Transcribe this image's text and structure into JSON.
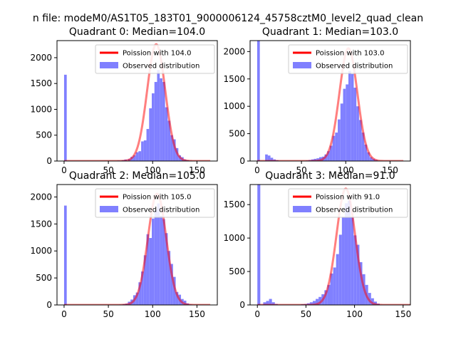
{
  "suptitle": "n file: modeM0/AS1T05_183T01_9000006124_45758cztM0_level2_quad_clean",
  "colors": {
    "hist": "#8080ff",
    "poisson": "#ff0000",
    "frame": "#000000"
  },
  "chart_data": [
    {
      "type": "bar",
      "title": "Quadrant 0: Median=104.0",
      "legend": {
        "placement": "top-right",
        "entries": [
          "Poission with 104.0",
          "Observed distribution"
        ]
      },
      "xlim": [
        -8,
        173
      ],
      "ylim": [
        0,
        2330
      ],
      "xticks": [
        0,
        50,
        100,
        150
      ],
      "yticks": [
        0,
        500,
        1000,
        1500,
        2000
      ],
      "poisson_mean": 104,
      "poisson_peak": 2260,
      "poisson_sigma": 10.2,
      "series": [
        {
          "name": "Observed distribution",
          "bins": [
            [
              0,
              1670
            ],
            [
              60,
              10
            ],
            [
              65,
              15
            ],
            [
              68,
              30
            ],
            [
              72,
              40
            ],
            [
              75,
              80
            ],
            [
              78,
              110
            ],
            [
              81,
              170
            ],
            [
              84,
              190
            ],
            [
              87,
              380
            ],
            [
              90,
              400
            ],
            [
              93,
              620
            ],
            [
              96,
              1020
            ],
            [
              99,
              1310
            ],
            [
              102,
              1530
            ],
            [
              105,
              1760
            ],
            [
              108,
              1600
            ],
            [
              111,
              1530
            ],
            [
              114,
              1040
            ],
            [
              117,
              780
            ],
            [
              120,
              500
            ],
            [
              123,
              420
            ],
            [
              126,
              250
            ],
            [
              129,
              110
            ],
            [
              132,
              75
            ],
            [
              135,
              30
            ],
            [
              138,
              15
            ],
            [
              141,
              8
            ]
          ],
          "bin_width": 3
        }
      ]
    },
    {
      "type": "bar",
      "title": "Quadrant 1: Median=103.0",
      "legend": {
        "placement": "top-right",
        "entries": [
          "Poission with 103.0",
          "Observed distribution"
        ]
      },
      "xlim": [
        -8,
        173
      ],
      "ylim": [
        0,
        2200
      ],
      "xticks": [
        0,
        50,
        100,
        150
      ],
      "yticks": [
        0,
        500,
        1000,
        1500,
        2000
      ],
      "poisson_mean": 103,
      "poisson_peak": 2060,
      "poisson_sigma": 10.1,
      "series": [
        {
          "name": "Observed distribution",
          "bins": [
            [
              0,
              2200
            ],
            [
              9,
              120
            ],
            [
              12,
              100
            ],
            [
              15,
              60
            ],
            [
              18,
              30
            ],
            [
              21,
              15
            ],
            [
              55,
              10
            ],
            [
              58,
              20
            ],
            [
              61,
              30
            ],
            [
              64,
              40
            ],
            [
              67,
              50
            ],
            [
              70,
              70
            ],
            [
              73,
              80
            ],
            [
              76,
              120
            ],
            [
              79,
              180
            ],
            [
              82,
              280
            ],
            [
              85,
              460
            ],
            [
              88,
              520
            ],
            [
              91,
              760
            ],
            [
              94,
              1050
            ],
            [
              97,
              1320
            ],
            [
              100,
              1400
            ],
            [
              103,
              1650
            ],
            [
              106,
              1590
            ],
            [
              109,
              1340
            ],
            [
              112,
              1000
            ],
            [
              115,
              750
            ],
            [
              118,
              520
            ],
            [
              121,
              300
            ],
            [
              124,
              160
            ],
            [
              127,
              70
            ],
            [
              130,
              40
            ],
            [
              133,
              20
            ]
          ],
          "bin_width": 3
        }
      ]
    },
    {
      "type": "bar",
      "title": "Quadrant 2: Median=105.0",
      "legend": {
        "placement": "top-right",
        "entries": [
          "Poission with 105.0",
          "Observed distribution"
        ]
      },
      "xlim": [
        -8,
        173
      ],
      "ylim": [
        0,
        2230
      ],
      "xticks": [
        0,
        50,
        100,
        150
      ],
      "yticks": [
        0,
        500,
        1000,
        1500,
        2000
      ],
      "poisson_mean": 105,
      "poisson_peak": 2060,
      "poisson_sigma": 10.3,
      "series": [
        {
          "name": "Observed distribution",
          "bins": [
            [
              0,
              1840
            ],
            [
              62,
              8
            ],
            [
              66,
              15
            ],
            [
              69,
              25
            ],
            [
              72,
              60
            ],
            [
              75,
              100
            ],
            [
              78,
              180
            ],
            [
              81,
              230
            ],
            [
              84,
              420
            ],
            [
              87,
              620
            ],
            [
              90,
              920
            ],
            [
              93,
              1310
            ],
            [
              96,
              1240
            ],
            [
              99,
              1600
            ],
            [
              102,
              1760
            ],
            [
              105,
              1880
            ],
            [
              108,
              1650
            ],
            [
              111,
              1590
            ],
            [
              114,
              1330
            ],
            [
              117,
              1000
            ],
            [
              120,
              760
            ],
            [
              123,
              520
            ],
            [
              126,
              240
            ],
            [
              129,
              190
            ],
            [
              132,
              110
            ],
            [
              135,
              80
            ],
            [
              138,
              30
            ],
            [
              141,
              10
            ]
          ],
          "bin_width": 3
        }
      ]
    },
    {
      "type": "bar",
      "title": "Quadrant 3: Median=91.0",
      "legend": {
        "placement": "top-right",
        "entries": [
          "Poission with 91.0",
          "Observed distribution"
        ]
      },
      "xlim": [
        -7.5,
        157.5
      ],
      "ylim": [
        0,
        1800
      ],
      "xticks": [
        0,
        50,
        100,
        150
      ],
      "yticks": [
        0,
        500,
        1000,
        1500
      ],
      "poisson_mean": 91,
      "poisson_peak": 1740,
      "poisson_sigma": 9.5,
      "series": [
        {
          "name": "Observed distribution",
          "bins": [
            [
              0,
              1800
            ],
            [
              6,
              40
            ],
            [
              9,
              60
            ],
            [
              12,
              90
            ],
            [
              15,
              40
            ],
            [
              18,
              15
            ],
            [
              45,
              10
            ],
            [
              48,
              15
            ],
            [
              51,
              25
            ],
            [
              54,
              40
            ],
            [
              57,
              60
            ],
            [
              60,
              90
            ],
            [
              63,
              120
            ],
            [
              66,
              160
            ],
            [
              69,
              220
            ],
            [
              72,
              300
            ],
            [
              75,
              470
            ],
            [
              78,
              560
            ],
            [
              81,
              760
            ],
            [
              84,
              1050
            ],
            [
              87,
              1320
            ],
            [
              90,
              1520
            ],
            [
              93,
              1560
            ],
            [
              96,
              1320
            ],
            [
              99,
              1040
            ],
            [
              102,
              900
            ],
            [
              105,
              640
            ],
            [
              108,
              460
            ],
            [
              111,
              300
            ],
            [
              114,
              180
            ],
            [
              117,
              100
            ],
            [
              120,
              50
            ],
            [
              123,
              20
            ]
          ],
          "bin_width": 3
        }
      ]
    }
  ]
}
